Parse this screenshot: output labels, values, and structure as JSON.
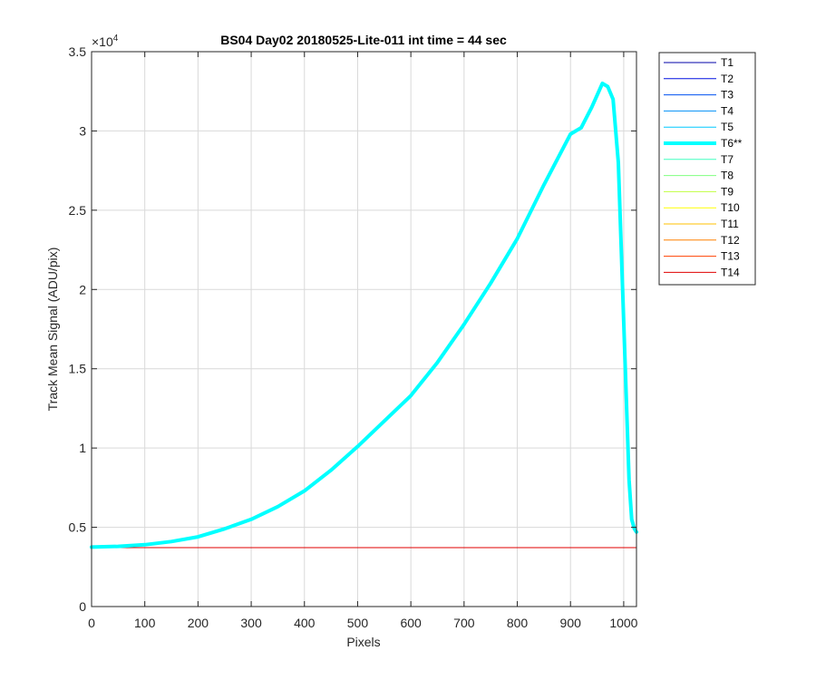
{
  "chart_data": {
    "type": "line",
    "title": "BS04 Day02 20180525-Lite-011 int time = 44 sec",
    "xlabel": "Pixels",
    "ylabel": "Track Mean Signal (ADU/pix)",
    "y_exponent_label": "×10",
    "y_exponent_power": "4",
    "xlim": [
      0,
      1024
    ],
    "ylim": [
      0,
      35000
    ],
    "xticks": [
      0,
      100,
      200,
      300,
      400,
      500,
      600,
      700,
      800,
      900,
      1000
    ],
    "yticks": [
      0,
      5000,
      10000,
      15000,
      20000,
      25000,
      30000,
      35000
    ],
    "ytick_labels": [
      "0",
      "0.5",
      "1",
      "1.5",
      "2",
      "2.5",
      "3",
      "3.5"
    ],
    "grid": true,
    "legend_position": "outside right, top",
    "series": [
      {
        "name": "T1",
        "color": "#0000a8",
        "width": 1,
        "x": [
          0,
          1024
        ],
        "y": [
          3720,
          3720
        ]
      },
      {
        "name": "T2",
        "color": "#0010e0",
        "width": 1,
        "x": [
          0,
          1024
        ],
        "y": [
          3720,
          3720
        ]
      },
      {
        "name": "T3",
        "color": "#0050f0",
        "width": 1,
        "x": [
          0,
          1024
        ],
        "y": [
          3720,
          3720
        ]
      },
      {
        "name": "T4",
        "color": "#0090f8",
        "width": 1,
        "x": [
          0,
          1024
        ],
        "y": [
          3720,
          3720
        ]
      },
      {
        "name": "T5",
        "color": "#00c8ff",
        "width": 1,
        "x": [
          0,
          1024
        ],
        "y": [
          3720,
          3720
        ]
      },
      {
        "name": "T6**",
        "color": "#00ffff",
        "width": 4,
        "x": [
          0,
          50,
          100,
          150,
          200,
          250,
          300,
          350,
          400,
          450,
          500,
          550,
          600,
          650,
          700,
          750,
          800,
          850,
          900,
          920,
          940,
          960,
          970,
          980,
          990,
          1000,
          1010,
          1015,
          1020,
          1024
        ],
        "y": [
          3750,
          3800,
          3900,
          4100,
          4400,
          4900,
          5500,
          6300,
          7300,
          8600,
          10100,
          11700,
          13300,
          15400,
          17800,
          20400,
          23200,
          26600,
          29800,
          30200,
          31500,
          33000,
          32800,
          32000,
          28000,
          18000,
          8000,
          5500,
          4900,
          4700
        ]
      },
      {
        "name": "T7",
        "color": "#40ffc0",
        "width": 1,
        "x": [
          0,
          1024
        ],
        "y": [
          3720,
          3720
        ]
      },
      {
        "name": "T8",
        "color": "#80ff80",
        "width": 1,
        "x": [
          0,
          1024
        ],
        "y": [
          3720,
          3720
        ]
      },
      {
        "name": "T9",
        "color": "#c0ff40",
        "width": 1,
        "x": [
          0,
          1024
        ],
        "y": [
          3720,
          3720
        ]
      },
      {
        "name": "T10",
        "color": "#ffff00",
        "width": 1,
        "x": [
          0,
          1024
        ],
        "y": [
          3720,
          3720
        ]
      },
      {
        "name": "T11",
        "color": "#ffc000",
        "width": 1,
        "x": [
          0,
          1024
        ],
        "y": [
          3720,
          3720
        ]
      },
      {
        "name": "T12",
        "color": "#ff8000",
        "width": 1,
        "x": [
          0,
          1024
        ],
        "y": [
          3720,
          3720
        ]
      },
      {
        "name": "T13",
        "color": "#ff4000",
        "width": 1,
        "x": [
          0,
          1024
        ],
        "y": [
          3720,
          3720
        ]
      },
      {
        "name": "T14",
        "color": "#e00000",
        "width": 1,
        "x": [
          0,
          1024
        ],
        "y": [
          3720,
          3720
        ]
      }
    ]
  }
}
